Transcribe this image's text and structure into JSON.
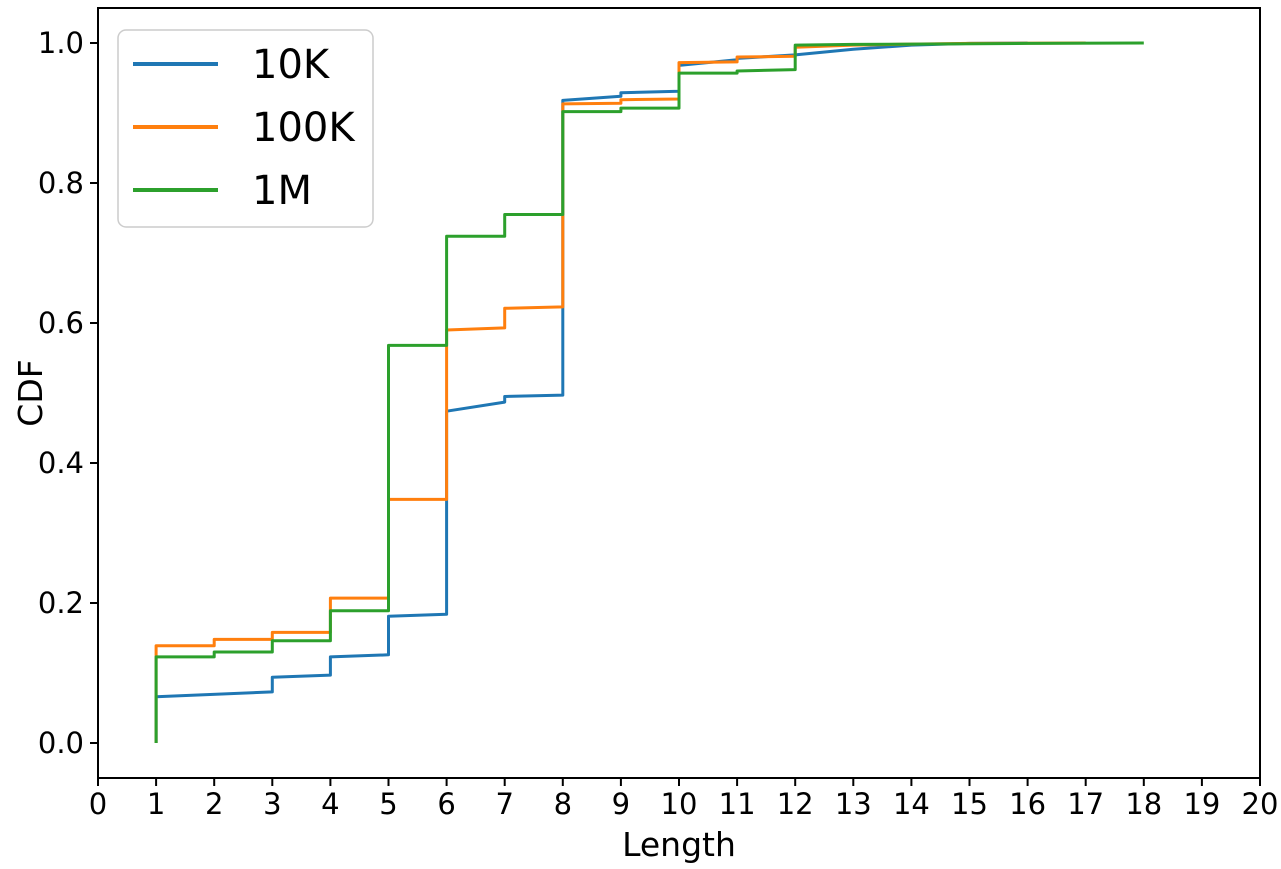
{
  "chart_data": {
    "type": "line",
    "style": "cdf_step",
    "title": "",
    "xlabel": "Length",
    "ylabel": "CDF",
    "xlim": [
      0,
      20
    ],
    "ylim": [
      -0.05,
      1.05
    ],
    "grid": false,
    "axis_color": "#000000",
    "background": "#ffffff",
    "x_ticks": {
      "values": [
        0,
        1,
        2,
        3,
        4,
        5,
        6,
        7,
        8,
        9,
        10,
        11,
        12,
        13,
        14,
        15,
        16,
        17,
        18,
        19,
        20
      ],
      "labels": [
        "0",
        "1",
        "2",
        "3",
        "4",
        "5",
        "6",
        "7",
        "8",
        "9",
        "10",
        "11",
        "12",
        "13",
        "14",
        "15",
        "16",
        "17",
        "18",
        "19",
        "20"
      ]
    },
    "y_ticks": {
      "values": [
        0.0,
        0.2,
        0.4,
        0.6,
        0.8,
        1.0
      ],
      "labels": [
        "0.0",
        "0.2",
        "0.4",
        "0.6",
        "0.8",
        "1.0"
      ]
    },
    "legend": {
      "location": "upper left",
      "border_color": "#cccccc",
      "entries": [
        {
          "label": "10K",
          "color": "#1f77b4"
        },
        {
          "label": "100K",
          "color": "#ff7f0e"
        },
        {
          "label": "1M",
          "color": "#2ca02c"
        }
      ]
    },
    "series": [
      {
        "name": "10K",
        "color": "#1f77b4",
        "points": [
          [
            1,
            0
          ],
          [
            1,
            0.066
          ],
          [
            3,
            0.073
          ],
          [
            3,
            0.094
          ],
          [
            4,
            0.097
          ],
          [
            4,
            0.123
          ],
          [
            5,
            0.126
          ],
          [
            5,
            0.181
          ],
          [
            6,
            0.184
          ],
          [
            6,
            0.474
          ],
          [
            7,
            0.487
          ],
          [
            7,
            0.495
          ],
          [
            8,
            0.497
          ],
          [
            8,
            0.918
          ],
          [
            9,
            0.924
          ],
          [
            9,
            0.929
          ],
          [
            10,
            0.931
          ],
          [
            10,
            0.968
          ],
          [
            11,
            0.976
          ],
          [
            11,
            0.978
          ],
          [
            12,
            0.983
          ],
          [
            13,
            0.991
          ],
          [
            14,
            0.997
          ],
          [
            15,
            0.9995
          ],
          [
            16,
            1.0
          ]
        ]
      },
      {
        "name": "100K",
        "color": "#ff7f0e",
        "points": [
          [
            1,
            0
          ],
          [
            1,
            0.139
          ],
          [
            2,
            0.139
          ],
          [
            2,
            0.148
          ],
          [
            3,
            0.148
          ],
          [
            3,
            0.158
          ],
          [
            4,
            0.158
          ],
          [
            4,
            0.207
          ],
          [
            5,
            0.207
          ],
          [
            5,
            0.348
          ],
          [
            6,
            0.348
          ],
          [
            6,
            0.59
          ],
          [
            7,
            0.593
          ],
          [
            7,
            0.621
          ],
          [
            8,
            0.623
          ],
          [
            8,
            0.913
          ],
          [
            9,
            0.914
          ],
          [
            9,
            0.919
          ],
          [
            10,
            0.92
          ],
          [
            10,
            0.972
          ],
          [
            11,
            0.973
          ],
          [
            11,
            0.98
          ],
          [
            12,
            0.981
          ],
          [
            12,
            0.994
          ],
          [
            13,
            0.997
          ],
          [
            14,
            0.9985
          ],
          [
            15,
            0.9995
          ],
          [
            17,
            1.0
          ]
        ]
      },
      {
        "name": "1M",
        "color": "#2ca02c",
        "points": [
          [
            1,
            0
          ],
          [
            1,
            0.123
          ],
          [
            2,
            0.123
          ],
          [
            2,
            0.13
          ],
          [
            3,
            0.13
          ],
          [
            3,
            0.146
          ],
          [
            4,
            0.146
          ],
          [
            4,
            0.189
          ],
          [
            5,
            0.189
          ],
          [
            5,
            0.568
          ],
          [
            6,
            0.568
          ],
          [
            6,
            0.724
          ],
          [
            7,
            0.724
          ],
          [
            7,
            0.755
          ],
          [
            8,
            0.755
          ],
          [
            8,
            0.902
          ],
          [
            9,
            0.902
          ],
          [
            9,
            0.907
          ],
          [
            10,
            0.907
          ],
          [
            10,
            0.957
          ],
          [
            11,
            0.957
          ],
          [
            11,
            0.96
          ],
          [
            12,
            0.962
          ],
          [
            12,
            0.997
          ],
          [
            13,
            0.998
          ],
          [
            14,
            0.9985
          ],
          [
            16,
            0.9995
          ],
          [
            18,
            1.0
          ]
        ]
      }
    ]
  }
}
